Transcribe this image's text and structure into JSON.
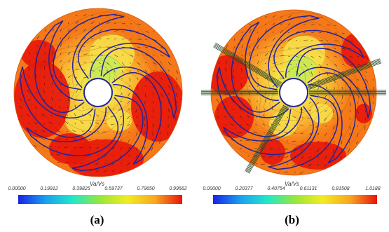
{
  "panels": [
    {
      "id": "a",
      "caption": "(a)",
      "colorbar": {
        "label": "Va/Vs",
        "ticks": [
          "0.00000",
          "0.19912",
          "0.39825",
          "0.59737",
          "0.79650",
          "0.99562"
        ],
        "min": 0,
        "max": 0.99562
      }
    },
    {
      "id": "b",
      "caption": "(b)",
      "colorbar": {
        "label": "Va/Vs",
        "ticks": [
          "0.00000",
          "0.20377",
          "0.40754",
          "0.61131",
          "0.81508",
          "1.0188"
        ],
        "min": 0,
        "max": 1.0188
      }
    }
  ],
  "colors": {
    "high": "#e8180c",
    "mid_high": "#f67818",
    "mid": "#fab432",
    "low": "#f7e14a",
    "lowest": "#c9ea55",
    "blade": "#23239c",
    "arrows": "#1a1a1a",
    "colorbar_stops": [
      "#1a22e6",
      "#1aa0f0",
      "#22e8c8",
      "#9ae63a",
      "#f2ec20",
      "#f8a820",
      "#e8140c"
    ]
  }
}
